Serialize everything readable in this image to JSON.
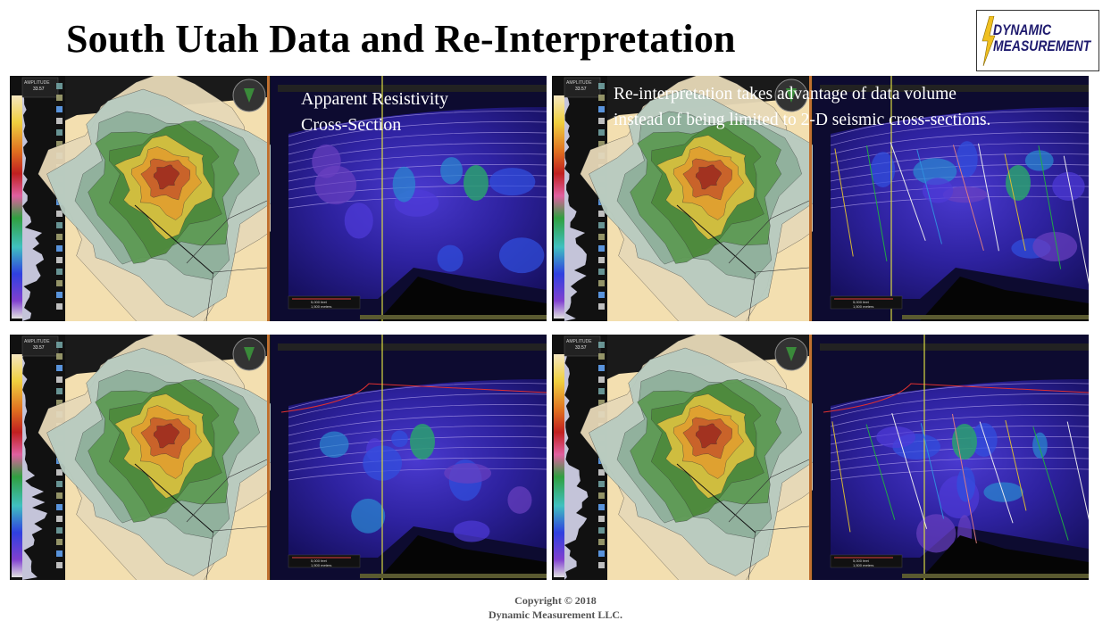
{
  "title": "South Utah Data and Re-Interpretation",
  "logo": {
    "line1": "DYNAMIC",
    "line2": "MEASUREMENT"
  },
  "panels": [
    {
      "id": "top-left",
      "overlay": [
        "Apparent Resistivity",
        "Cross-Section"
      ],
      "interpreted": false
    },
    {
      "id": "top-right",
      "overlay": [
        "Re-interpretation takes advantage of data volume",
        "instead of being limited to 2-D seismic cross-sections."
      ],
      "interpreted": true
    },
    {
      "id": "bottom-left",
      "overlay": [],
      "interpreted": false
    },
    {
      "id": "bottom-right",
      "overlay": [],
      "interpreted": true
    }
  ],
  "scale": {
    "feet": "5,000 feet",
    "meters": "1,500 meters"
  },
  "toolbar": {
    "amplitude_label": "AMPLITUDE",
    "value": "33.57"
  },
  "copyright": {
    "line1": "Copyright © 2018",
    "line2": "Dynamic  Measurement  LLC."
  },
  "colors": {
    "background": "#ffffff",
    "panel_bg": "#1a1a1a",
    "seismic_bg": "#0d0b30",
    "logo_text": "#1e1a6e",
    "logo_bolt": "#f0c020",
    "horizon": "#e03030",
    "marker_line": "#d8d840"
  }
}
